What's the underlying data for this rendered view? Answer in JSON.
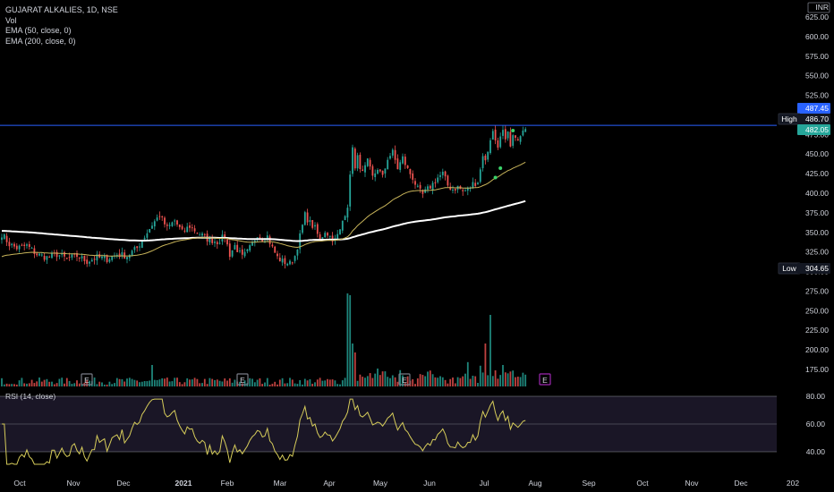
{
  "legend": {
    "symbol_line": "GUJARAT ALKALIES, 1D, NSE",
    "vol": "Vol",
    "ema50": "EMA (50, close, 0)",
    "ema200": "EMA (200, close, 0)"
  },
  "rsi_legend": "RSI (14, close)",
  "currency": "INR",
  "price_tags": {
    "last": "487.45",
    "high_label": "High",
    "high": "486.70",
    "close": "482.05",
    "low_label": "Low",
    "low": "304.65"
  },
  "colors": {
    "up": "#26a69a",
    "down": "#ef5350",
    "ema50": "#c8b45a",
    "ema200": "#ffffff",
    "rsi_line": "#d6cc5a",
    "rsi_band": "#1a1626",
    "high_line": "#2962ff",
    "earnings_marker": "#787b86",
    "upcoming_earnings": "#9c27b0"
  },
  "chart_data": {
    "type": "candlestick",
    "title": "GUJARAT ALKALIES, 1D, NSE",
    "price_axis": {
      "ticks": [
        "625.00",
        "600.00",
        "575.00",
        "550.00",
        "525.00",
        "500.00",
        "475.00",
        "450.00",
        "425.00",
        "400.00",
        "375.00",
        "350.00",
        "325.00",
        "300.00",
        "275.00",
        "250.00",
        "225.00",
        "200.00",
        "175.00"
      ],
      "range": [
        165,
        632
      ]
    },
    "rsi_axis": {
      "ticks": [
        "80.00",
        "60.00",
        "40.00"
      ],
      "range": [
        30,
        90
      ],
      "band": [
        40,
        80
      ],
      "midline": 60
    },
    "x_axis": {
      "labels": [
        "Oct",
        "Nov",
        "Dec",
        "2021",
        "Feb",
        "Mar",
        "Apr",
        "May",
        "Jun",
        "Jul",
        "Aug",
        "Sep",
        "Oct",
        "Nov",
        "Dec",
        "202"
      ]
    },
    "high": 486.7,
    "low": 304.65,
    "last": 487.45,
    "close": 482.05,
    "close_anchors": [
      [
        0,
        348
      ],
      [
        3,
        335
      ],
      [
        6,
        330
      ],
      [
        10,
        333
      ],
      [
        14,
        322
      ],
      [
        18,
        318
      ],
      [
        22,
        322
      ],
      [
        26,
        316
      ],
      [
        30,
        320
      ],
      [
        34,
        313
      ],
      [
        38,
        318
      ],
      [
        42,
        316
      ],
      [
        46,
        322
      ],
      [
        50,
        320
      ],
      [
        54,
        330
      ],
      [
        57,
        345
      ],
      [
        60,
        360
      ],
      [
        63,
        372
      ],
      [
        66,
        355
      ],
      [
        69,
        365
      ],
      [
        72,
        350
      ],
      [
        75,
        358
      ],
      [
        78,
        350
      ],
      [
        82,
        342
      ],
      [
        86,
        338
      ],
      [
        89,
        345
      ],
      [
        91,
        322
      ],
      [
        93,
        333
      ],
      [
        96,
        318
      ],
      [
        98,
        325
      ],
      [
        100,
        335
      ],
      [
        102,
        348
      ],
      [
        104,
        342
      ],
      [
        106,
        345
      ],
      [
        108,
        330
      ],
      [
        110,
        318
      ],
      [
        112,
        313
      ],
      [
        115,
        310
      ],
      [
        117,
        320
      ],
      [
        119,
        345
      ],
      [
        121,
        372
      ],
      [
        123,
        362
      ],
      [
        125,
        355
      ],
      [
        127,
        340
      ],
      [
        129,
        352
      ],
      [
        131,
        345
      ],
      [
        133,
        340
      ],
      [
        135,
        352
      ],
      [
        136,
        365
      ],
      [
        138,
        385
      ],
      [
        139,
        420
      ],
      [
        140,
        462
      ],
      [
        141,
        430
      ],
      [
        142,
        445
      ],
      [
        144,
        425
      ],
      [
        146,
        440
      ],
      [
        148,
        420
      ],
      [
        150,
        432
      ],
      [
        152,
        420
      ],
      [
        154,
        445
      ],
      [
        156,
        452
      ],
      [
        158,
        432
      ],
      [
        160,
        445
      ],
      [
        162,
        430
      ],
      [
        164,
        420
      ],
      [
        166,
        405
      ],
      [
        168,
        398
      ],
      [
        170,
        405
      ],
      [
        172,
        412
      ],
      [
        174,
        420
      ],
      [
        176,
        425
      ],
      [
        178,
        410
      ],
      [
        180,
        405
      ],
      [
        182,
        408
      ],
      [
        184,
        402
      ],
      [
        186,
        405
      ],
      [
        188,
        412
      ],
      [
        190,
        415
      ],
      [
        191,
        430
      ],
      [
        192,
        450
      ],
      [
        193,
        440
      ],
      [
        194,
        455
      ],
      [
        195,
        470
      ],
      [
        196,
        478
      ],
      [
        197,
        468
      ],
      [
        198,
        462
      ],
      [
        199,
        470
      ],
      [
        200,
        478
      ],
      [
        201,
        465
      ],
      [
        202,
        475
      ],
      [
        203,
        458
      ],
      [
        204,
        470
      ],
      [
        205,
        475
      ],
      [
        206,
        465
      ],
      [
        207,
        472
      ],
      [
        208,
        478
      ],
      [
        209,
        482
      ]
    ],
    "volume_events": [
      [
        138,
        260
      ],
      [
        139,
        255
      ],
      [
        140,
        120
      ],
      [
        141,
        95
      ],
      [
        150,
        50
      ],
      [
        186,
        68
      ],
      [
        191,
        58
      ],
      [
        193,
        120
      ],
      [
        195,
        200
      ],
      [
        197,
        45
      ],
      [
        200,
        60
      ]
    ],
    "earnings_markers": [
      "E",
      "E",
      "E",
      "E"
    ],
    "signals": [
      {
        "i": 197,
        "y": 420
      },
      {
        "i": 199,
        "y": 432
      },
      {
        "i": 204,
        "y": 480
      }
    ]
  }
}
